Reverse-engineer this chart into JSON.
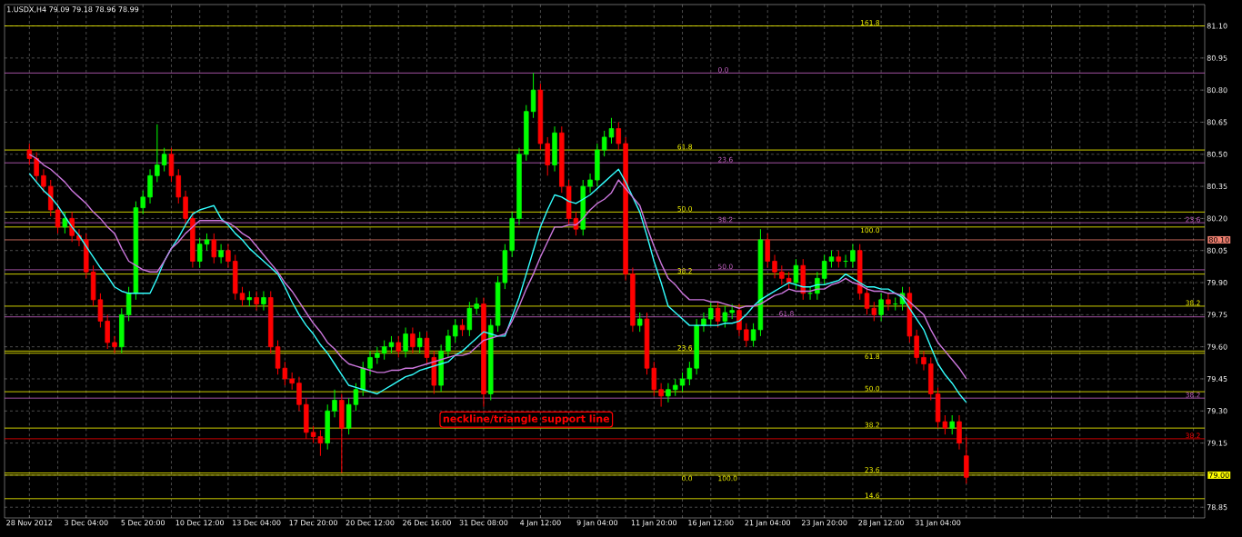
{
  "chart_data": {
    "type": "candlestick",
    "title": "1.USDX,H4  79.09 79.18 78.96 78.99",
    "grid": true,
    "categories": [
      "28 Nov 2012",
      null,
      null,
      null,
      null,
      null,
      null,
      null,
      "3 Dec 04:00",
      null,
      null,
      null,
      null,
      null,
      null,
      null,
      "5 Dec 20:00",
      null,
      null,
      null,
      null,
      null,
      null,
      null,
      "10 Dec 12:00",
      null,
      null,
      null,
      null,
      null,
      null,
      null,
      "13 Dec 04:00",
      null,
      null,
      null,
      null,
      null,
      null,
      null,
      "17 Dec 20:00",
      null,
      null,
      null,
      null,
      null,
      null,
      null,
      "20 Dec 12:00",
      null,
      null,
      null,
      null,
      null,
      null,
      null,
      "26 Dec 16:00",
      null,
      null,
      null,
      null,
      null,
      null,
      null,
      "31 Dec 08:00",
      null,
      null,
      null,
      null,
      null,
      null,
      null,
      "4 Jan 12:00",
      null,
      null,
      null,
      null,
      null,
      null,
      null,
      "9 Jan 04:00",
      null,
      null,
      null,
      null,
      null,
      null,
      null,
      "11 Jan 20:00",
      null,
      null,
      null,
      null,
      null,
      null,
      null,
      "16 Jan 12:00",
      null,
      null,
      null,
      null,
      null,
      null,
      null,
      "21 Jan 04:00",
      null,
      null,
      null,
      null,
      null,
      null,
      null,
      "23 Jan 20:00",
      null,
      null,
      null,
      null,
      null,
      null,
      null,
      "28 Jan 12:00",
      null,
      null,
      null,
      null,
      null,
      null,
      null,
      "31 Jan 04:00",
      null,
      null,
      null,
      null
    ],
    "ohlc": [
      [
        80.52,
        80.55,
        80.45,
        80.48
      ],
      [
        80.48,
        80.51,
        80.37,
        80.4
      ],
      [
        80.4,
        80.43,
        80.32,
        80.35
      ],
      [
        80.35,
        80.38,
        80.21,
        80.24
      ],
      [
        80.24,
        80.27,
        80.13,
        80.16
      ],
      [
        80.16,
        80.23,
        80.13,
        80.2
      ],
      [
        80.2,
        80.23,
        80.09,
        80.12
      ],
      [
        80.12,
        80.15,
        80.07,
        80.1
      ],
      [
        80.1,
        80.13,
        79.92,
        79.95
      ],
      [
        79.95,
        79.98,
        79.79,
        79.82
      ],
      [
        79.82,
        79.85,
        79.69,
        79.72
      ],
      [
        79.72,
        79.75,
        79.59,
        79.62
      ],
      [
        79.62,
        79.65,
        79.57,
        79.6
      ],
      [
        79.6,
        79.78,
        79.57,
        79.75
      ],
      [
        79.75,
        79.88,
        79.72,
        79.85
      ],
      [
        79.85,
        80.28,
        79.82,
        80.25
      ],
      [
        80.25,
        80.33,
        80.22,
        80.3
      ],
      [
        80.3,
        80.43,
        80.27,
        80.4
      ],
      [
        80.4,
        80.64,
        80.37,
        80.45
      ],
      [
        80.45,
        80.53,
        80.42,
        80.5
      ],
      [
        80.5,
        80.53,
        80.37,
        80.4
      ],
      [
        80.4,
        80.43,
        80.27,
        80.3
      ],
      [
        80.3,
        80.33,
        80.17,
        80.2
      ],
      [
        80.2,
        80.23,
        79.97,
        80.0
      ],
      [
        80.0,
        80.11,
        79.97,
        80.08
      ],
      [
        80.08,
        80.13,
        80.05,
        80.1
      ],
      [
        80.1,
        80.13,
        79.99,
        80.02
      ],
      [
        80.02,
        80.08,
        79.99,
        80.05
      ],
      [
        80.05,
        80.08,
        79.97,
        80.0
      ],
      [
        80.0,
        80.03,
        79.82,
        79.85
      ],
      [
        79.85,
        79.88,
        79.79,
        79.82
      ],
      [
        79.82,
        79.86,
        79.79,
        79.83
      ],
      [
        79.83,
        79.86,
        79.77,
        79.8
      ],
      [
        79.8,
        79.86,
        79.77,
        79.83
      ],
      [
        79.83,
        79.86,
        79.57,
        79.6
      ],
      [
        79.6,
        79.63,
        79.47,
        79.5
      ],
      [
        79.5,
        79.53,
        79.42,
        79.45
      ],
      [
        79.45,
        79.48,
        79.4,
        79.43
      ],
      [
        79.43,
        79.46,
        79.3,
        79.33
      ],
      [
        79.33,
        79.36,
        79.17,
        79.2
      ],
      [
        79.2,
        79.23,
        79.15,
        79.18
      ],
      [
        79.18,
        79.21,
        79.09,
        79.15
      ],
      [
        79.15,
        79.33,
        79.12,
        79.3
      ],
      [
        79.3,
        79.4,
        79.27,
        79.35
      ],
      [
        79.35,
        79.38,
        79.01,
        79.22
      ],
      [
        79.22,
        79.36,
        79.19,
        79.33
      ],
      [
        79.33,
        79.43,
        79.3,
        79.4
      ],
      [
        79.4,
        79.53,
        79.37,
        79.5
      ],
      [
        79.5,
        79.58,
        79.47,
        79.55
      ],
      [
        79.55,
        79.6,
        79.52,
        79.57
      ],
      [
        79.57,
        79.63,
        79.54,
        79.6
      ],
      [
        79.6,
        79.65,
        79.57,
        79.62
      ],
      [
        79.62,
        79.65,
        79.55,
        79.58
      ],
      [
        79.58,
        79.69,
        79.55,
        79.66
      ],
      [
        79.66,
        79.69,
        79.57,
        79.6
      ],
      [
        79.6,
        79.67,
        79.57,
        79.64
      ],
      [
        79.64,
        79.67,
        79.52,
        79.55
      ],
      [
        79.55,
        79.58,
        79.38,
        79.42
      ],
      [
        79.42,
        79.61,
        79.39,
        79.58
      ],
      [
        79.58,
        79.68,
        79.55,
        79.65
      ],
      [
        79.65,
        79.73,
        79.62,
        79.7
      ],
      [
        79.7,
        79.73,
        79.65,
        79.68
      ],
      [
        79.68,
        79.81,
        79.65,
        79.78
      ],
      [
        79.78,
        79.83,
        79.75,
        79.8
      ],
      [
        79.8,
        79.83,
        79.32,
        79.38
      ],
      [
        79.38,
        79.73,
        79.35,
        79.7
      ],
      [
        79.7,
        79.93,
        79.67,
        79.9
      ],
      [
        79.9,
        80.08,
        79.87,
        80.05
      ],
      [
        80.05,
        80.23,
        80.02,
        80.2
      ],
      [
        80.2,
        80.53,
        80.17,
        80.5
      ],
      [
        80.5,
        80.73,
        80.47,
        80.7
      ],
      [
        80.7,
        80.88,
        80.67,
        80.8
      ],
      [
        80.8,
        80.83,
        80.52,
        80.55
      ],
      [
        80.55,
        80.58,
        80.4,
        80.45
      ],
      [
        80.45,
        80.63,
        80.42,
        80.6
      ],
      [
        80.6,
        80.63,
        80.32,
        80.35
      ],
      [
        80.35,
        80.38,
        80.17,
        80.2
      ],
      [
        80.2,
        80.23,
        80.12,
        80.15
      ],
      [
        80.15,
        80.38,
        80.12,
        80.35
      ],
      [
        80.35,
        80.41,
        80.32,
        80.38
      ],
      [
        80.38,
        80.55,
        80.35,
        80.52
      ],
      [
        80.52,
        80.61,
        80.49,
        80.58
      ],
      [
        80.58,
        80.67,
        80.55,
        80.62
      ],
      [
        80.62,
        80.65,
        80.52,
        80.55
      ],
      [
        80.55,
        80.58,
        79.91,
        79.94
      ],
      [
        79.94,
        79.97,
        79.67,
        79.7
      ],
      [
        79.7,
        79.76,
        79.67,
        79.73
      ],
      [
        79.73,
        79.76,
        79.47,
        79.5
      ],
      [
        79.5,
        79.53,
        79.37,
        79.4
      ],
      [
        79.4,
        79.43,
        79.32,
        79.37
      ],
      [
        79.37,
        79.43,
        79.34,
        79.4
      ],
      [
        79.4,
        79.45,
        79.37,
        79.42
      ],
      [
        79.42,
        79.48,
        79.39,
        79.45
      ],
      [
        79.45,
        79.53,
        79.42,
        79.5
      ],
      [
        79.5,
        79.73,
        79.47,
        79.7
      ],
      [
        79.7,
        79.76,
        79.67,
        79.73
      ],
      [
        79.73,
        79.81,
        79.7,
        79.78
      ],
      [
        79.78,
        79.81,
        79.69,
        79.72
      ],
      [
        79.72,
        79.79,
        79.69,
        79.76
      ],
      [
        79.76,
        79.8,
        79.73,
        79.77
      ],
      [
        79.77,
        79.8,
        79.65,
        79.68
      ],
      [
        79.68,
        79.71,
        79.6,
        79.63
      ],
      [
        79.63,
        79.71,
        79.6,
        79.68
      ],
      [
        79.68,
        80.15,
        79.65,
        80.1
      ],
      [
        80.1,
        80.13,
        79.97,
        80.0
      ],
      [
        80.0,
        80.03,
        79.92,
        79.95
      ],
      [
        79.95,
        79.98,
        79.89,
        79.92
      ],
      [
        79.92,
        79.95,
        79.87,
        79.9
      ],
      [
        79.9,
        80.01,
        79.87,
        79.98
      ],
      [
        79.98,
        80.01,
        79.82,
        79.85
      ],
      [
        79.85,
        79.88,
        79.82,
        79.85
      ],
      [
        79.85,
        79.95,
        79.82,
        79.92
      ],
      [
        79.92,
        80.03,
        79.89,
        80.0
      ],
      [
        80.0,
        80.05,
        79.97,
        80.02
      ],
      [
        80.02,
        80.05,
        79.97,
        80.0
      ],
      [
        80.0,
        80.03,
        79.97,
        80.0
      ],
      [
        80.0,
        80.08,
        79.97,
        80.05
      ],
      [
        80.05,
        80.08,
        79.82,
        79.85
      ],
      [
        79.85,
        79.88,
        79.75,
        79.78
      ],
      [
        79.78,
        79.81,
        79.72,
        79.75
      ],
      [
        79.75,
        79.85,
        79.72,
        79.82
      ],
      [
        79.82,
        79.85,
        79.77,
        79.8
      ],
      [
        79.8,
        79.83,
        79.77,
        79.8
      ],
      [
        79.8,
        79.88,
        79.77,
        79.85
      ],
      [
        79.85,
        79.88,
        79.62,
        79.65
      ],
      [
        79.65,
        79.68,
        79.52,
        79.55
      ],
      [
        79.55,
        79.58,
        79.49,
        79.52
      ],
      [
        79.52,
        79.55,
        79.35,
        79.38
      ],
      [
        79.38,
        79.41,
        79.22,
        79.25
      ],
      [
        79.25,
        79.28,
        79.19,
        79.22
      ],
      [
        79.22,
        79.28,
        79.19,
        79.25
      ],
      [
        79.25,
        79.28,
        79.12,
        79.15
      ],
      [
        79.09,
        79.18,
        78.96,
        78.99
      ]
    ],
    "series": [
      {
        "type": "line",
        "color": "#33ffff",
        "values": [
          80.41,
          80.37,
          80.33,
          80.3,
          80.26,
          80.21,
          80.16,
          80.12,
          80.07,
          80.02,
          79.97,
          79.93,
          79.88,
          79.86,
          79.85,
          79.85,
          79.85,
          79.85,
          79.92,
          80.0,
          80.06,
          80.11,
          80.17,
          80.22,
          80.24,
          80.25,
          80.26,
          80.2,
          80.17,
          80.13,
          80.1,
          80.06,
          80.03,
          80.0,
          79.97,
          79.94,
          79.88,
          79.81,
          79.75,
          79.7,
          79.66,
          79.61,
          79.57,
          79.52,
          79.47,
          79.42,
          79.41,
          79.4,
          79.39,
          79.38,
          79.4,
          79.42,
          79.44,
          79.46,
          79.47,
          79.49,
          79.5,
          79.51,
          79.52,
          79.53,
          79.56,
          79.58,
          79.61,
          79.64,
          79.67,
          79.66,
          79.65,
          79.65,
          79.74,
          79.83,
          79.94,
          80.05,
          80.16,
          80.24,
          80.31,
          80.3,
          80.28,
          80.27,
          80.29,
          80.31,
          80.34,
          80.37,
          80.4,
          80.43,
          80.37,
          80.3,
          80.23,
          80.12,
          80.0,
          79.9,
          79.79,
          79.76,
          79.73,
          79.7,
          79.7,
          79.7,
          79.7,
          79.7,
          79.71,
          79.71,
          79.72,
          79.75,
          79.79,
          79.82,
          79.84,
          79.86,
          79.88,
          79.9,
          79.89,
          79.88,
          79.88,
          79.89,
          79.89,
          79.9,
          79.91,
          79.94,
          79.92,
          79.9,
          79.88,
          79.88,
          79.87,
          79.87,
          79.85,
          79.83,
          79.78,
          79.73,
          79.68,
          79.6,
          79.52,
          79.47,
          79.43,
          79.38,
          79.34
        ]
      },
      {
        "type": "line",
        "color": "#cc77dd",
        "values": [
          80.5,
          80.48,
          80.45,
          80.43,
          80.4,
          80.37,
          80.33,
          80.3,
          80.27,
          80.23,
          80.2,
          80.16,
          80.13,
          80.06,
          80.0,
          79.98,
          79.96,
          79.95,
          79.95,
          80.0,
          80.06,
          80.09,
          80.13,
          80.16,
          80.19,
          80.19,
          80.19,
          80.19,
          80.18,
          80.16,
          80.13,
          80.11,
          80.07,
          80.03,
          79.99,
          79.95,
          79.9,
          79.86,
          79.81,
          79.76,
          79.71,
          79.67,
          79.62,
          79.59,
          79.55,
          79.52,
          79.51,
          79.5,
          79.49,
          79.48,
          79.48,
          79.49,
          79.49,
          79.5,
          79.5,
          79.51,
          79.52,
          79.53,
          79.54,
          79.55,
          79.56,
          79.56,
          79.57,
          79.6,
          79.63,
          79.64,
          79.65,
          79.66,
          79.72,
          79.79,
          79.87,
          79.94,
          80.02,
          80.09,
          80.16,
          80.16,
          80.17,
          80.17,
          80.2,
          80.24,
          80.27,
          80.29,
          80.32,
          80.38,
          80.34,
          80.3,
          80.26,
          80.16,
          80.07,
          79.99,
          79.92,
          79.89,
          79.85,
          79.82,
          79.82,
          79.82,
          79.81,
          79.81,
          79.8,
          79.79,
          79.78,
          79.79,
          79.79,
          79.8,
          79.82,
          79.84,
          79.85,
          79.87,
          79.86,
          79.86,
          79.86,
          79.87,
          79.87,
          79.89,
          79.9,
          79.92,
          79.9,
          79.89,
          79.87,
          79.86,
          79.86,
          79.85,
          79.85,
          79.84,
          79.81,
          79.78,
          79.75,
          79.68,
          79.62,
          79.58,
          79.54,
          79.5,
          79.45
        ]
      }
    ],
    "ylim": [
      78.8,
      81.2
    ],
    "yticks": [
      {
        "value": 78.85,
        "label": "78.85"
      },
      {
        "value": 79.0,
        "label": null
      },
      {
        "value": 79.15,
        "label": "79.15"
      },
      {
        "value": 79.3,
        "label": "79.30"
      },
      {
        "value": 79.45,
        "label": "79.45"
      },
      {
        "value": 79.6,
        "label": "79.60"
      },
      {
        "value": 79.75,
        "label": "79.75"
      },
      {
        "value": 79.9,
        "label": "79.90"
      },
      {
        "value": 80.05,
        "label": "80.05"
      },
      {
        "value": 80.2,
        "label": "80.20"
      },
      {
        "value": 80.35,
        "label": "80.35"
      },
      {
        "value": 80.5,
        "label": "80.50"
      },
      {
        "value": 80.65,
        "label": "80.65"
      },
      {
        "value": 80.8,
        "label": "80.80"
      },
      {
        "value": 80.95,
        "label": "80.95"
      },
      {
        "value": 81.1,
        "label": "81.10"
      }
    ],
    "ref_lines": [
      {
        "axis": "y",
        "value": 80.52,
        "color": "#ffff00"
      },
      {
        "axis": "y",
        "value": 80.23,
        "color": "#ffff00"
      },
      {
        "axis": "y",
        "value": 79.94,
        "color": "#ffff00"
      },
      {
        "axis": "y",
        "value": 79.79,
        "color": "#ffff00"
      },
      {
        "axis": "y",
        "value": 79.58,
        "color": "#ffff00"
      },
      {
        "axis": "y",
        "value": 79.0,
        "label": "79.00",
        "color": "#ffff00"
      },
      {
        "axis": "y",
        "value": 81.1,
        "color": "#ffff00"
      },
      {
        "axis": "y",
        "value": 80.16,
        "color": "#ffff00"
      },
      {
        "axis": "y",
        "value": 79.57,
        "color": "#ffff00"
      },
      {
        "axis": "y",
        "value": 79.39,
        "color": "#ffff00"
      },
      {
        "axis": "y",
        "value": 79.22,
        "color": "#ffff00"
      },
      {
        "axis": "y",
        "value": 79.01,
        "color": "#ffff00"
      },
      {
        "axis": "y",
        "value": 78.89,
        "color": "#ffff00"
      },
      {
        "axis": "y",
        "value": 80.88,
        "color": "#cc66cc"
      },
      {
        "axis": "y",
        "value": 80.46,
        "color": "#cc66cc"
      },
      {
        "axis": "y",
        "value": 80.18,
        "color": "#cc66cc"
      },
      {
        "axis": "y",
        "value": 79.96,
        "color": "#cc66cc"
      },
      {
        "axis": "y",
        "value": 79.74,
        "color": "#cc66cc"
      },
      {
        "axis": "y",
        "value": 79.36,
        "color": "#cc66cc"
      },
      {
        "axis": "y",
        "value": 80.1,
        "label": "80.10",
        "color": "#f08070"
      },
      {
        "axis": "y",
        "value": 79.17,
        "color": "#ff0000"
      }
    ],
    "annotations": [
      "neckline/triangle support line",
      "61.8",
      "50.0",
      "38.2",
      "38.2",
      "23.6",
      "0.0",
      "161.8",
      "100.0",
      "61.8",
      "50.0",
      "38.2",
      "23.6",
      "14.6",
      "0.0",
      "23.6",
      "38.2",
      "50.0",
      "61.8",
      "100.0",
      "23.6",
      "38.2",
      "38.2"
    ]
  }
}
